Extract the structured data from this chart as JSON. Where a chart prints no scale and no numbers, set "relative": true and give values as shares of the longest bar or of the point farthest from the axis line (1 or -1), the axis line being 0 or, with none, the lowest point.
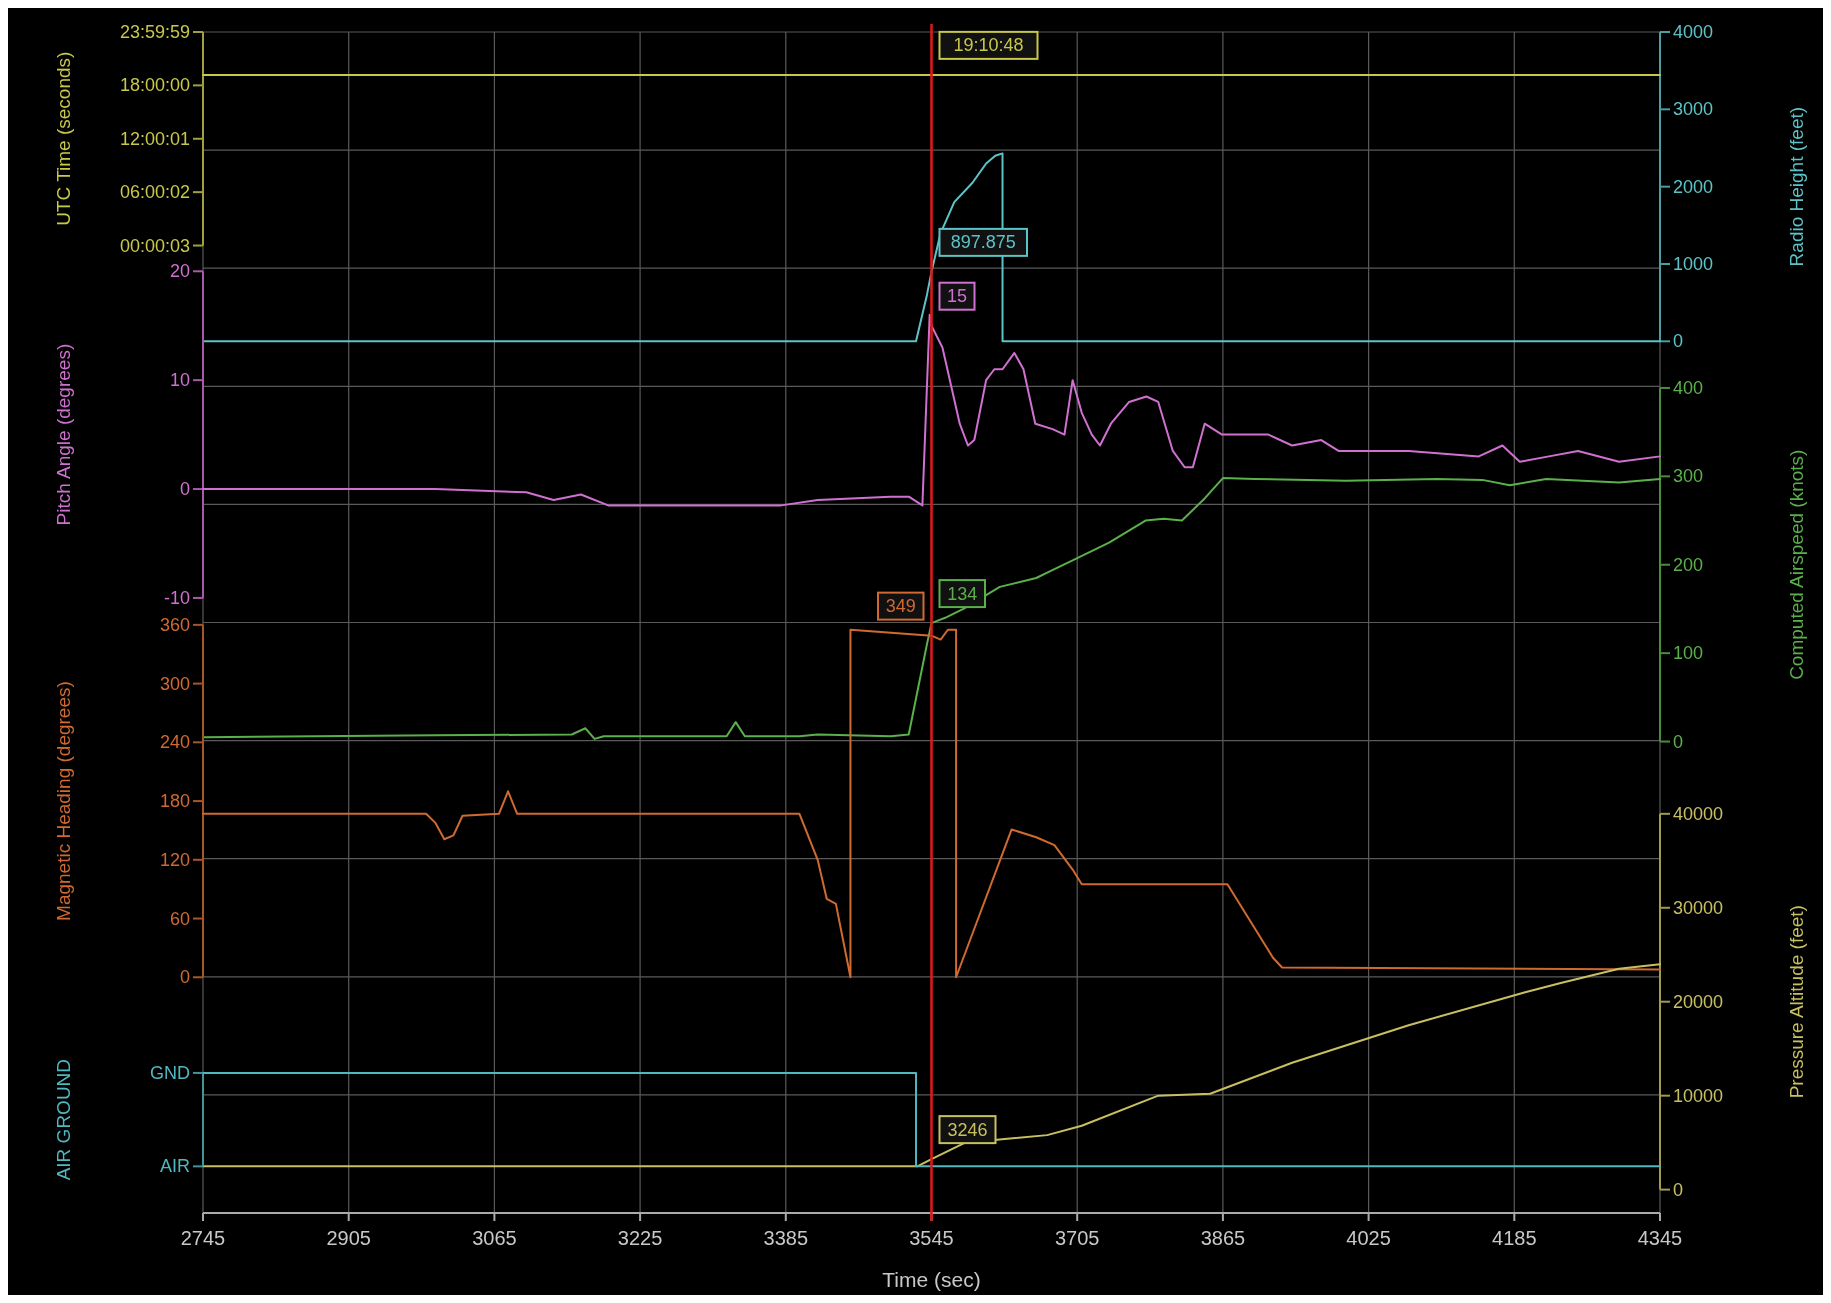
{
  "chart_data": [
    {
      "type": "line",
      "xlim": [
        2745,
        4345
      ],
      "xticks": [
        2745,
        2905,
        3065,
        3225,
        3385,
        3545,
        3705,
        3865,
        4025,
        4185,
        4345
      ],
      "tick_labels": "y",
      "grid": true,
      "ylabel": "UTC Time (seconds)",
      "ylim": [
        0.000833,
        23.999722
      ],
      "yticks": [
        {
          "value": 0.000833,
          "label": "00:00:03"
        },
        {
          "value": 6.000556,
          "label": "06:00:02"
        },
        {
          "value": 12.000278,
          "label": "12:00:01"
        },
        {
          "value": 18,
          "label": "18:00:00"
        },
        {
          "value": 23.999722,
          "label": "23:59:59"
        }
      ],
      "y2label": "Radio Height (feet)",
      "y2lim": [
        0,
        4000
      ],
      "y2ticks": [
        0,
        1000,
        2000,
        3000,
        4000
      ],
      "series": [
        {
          "color": "#c8c84a",
          "x": [
            2745,
            3545,
            4345
          ],
          "values": [
            19.18,
            19.18,
            19.18
          ],
          "value_labels": [
            null,
            "19:10:48",
            null
          ]
        },
        {
          "axis": "y2",
          "color": "#5cc4c8",
          "x": [
            2745,
            3528,
            3540,
            3545,
            3555,
            3570,
            3590,
            3605,
            3615,
            3623,
            3623,
            4345
          ],
          "values": [
            0,
            0,
            600,
            897.875,
            1400,
            1800,
            2050,
            2300,
            2400,
            2430,
            0,
            0
          ],
          "value_labels": [
            null,
            null,
            null,
            "897.875",
            null,
            null,
            null,
            null,
            null,
            null,
            null,
            null
          ]
        }
      ]
    },
    {
      "type": "line",
      "xlim": [
        2745,
        4345
      ],
      "xticks": [
        2745,
        2905,
        3065,
        3225,
        3385,
        3545,
        3705,
        3865,
        4025,
        4185,
        4345
      ],
      "tick_labels": "y",
      "grid": true,
      "ylabel": "Pitch Angle (degrees)",
      "ylim": [
        -10,
        20
      ],
      "yticks": [
        -10,
        0,
        10,
        20
      ],
      "y2label": "Computed Airspeed (knots)",
      "y2lim": [
        0,
        400
      ],
      "y2ticks": [
        0,
        100,
        200,
        300,
        400
      ],
      "series": [
        {
          "color": "#d070d0",
          "x": [
            2745,
            3000,
            3100,
            3130,
            3160,
            3190,
            3380,
            3420,
            3500,
            3520,
            3535,
            3543,
            3545,
            3557,
            3576,
            3585,
            3592,
            3605,
            3614,
            3623,
            3636,
            3646,
            3659,
            3678,
            3691,
            3700,
            3710,
            3721,
            3730,
            3742,
            3762,
            3781,
            3794,
            3810,
            3823,
            3832,
            3845,
            3864,
            3915,
            3941,
            3973,
            3992,
            4069,
            4146,
            4172,
            4191,
            4223,
            4255,
            4300,
            4345
          ],
          "values": [
            0,
            0,
            -0.3,
            -1,
            -0.5,
            -1.5,
            -1.5,
            -1,
            -0.7,
            -0.7,
            -1.5,
            16,
            15,
            13,
            6,
            4,
            4.5,
            10,
            11,
            11,
            12.5,
            11,
            6,
            5.5,
            5,
            10,
            7,
            5,
            4,
            6,
            8,
            8.5,
            8,
            3.5,
            2,
            2,
            6,
            5,
            5,
            4,
            4.5,
            3.5,
            3.5,
            3,
            4,
            2.5,
            3,
            3.5,
            2.5,
            3
          ],
          "value_labels": [
            null,
            null,
            null,
            null,
            null,
            null,
            null,
            null,
            null,
            null,
            null,
            null,
            "15",
            null,
            null,
            null,
            null,
            null,
            null,
            null,
            null,
            null,
            null,
            null,
            null,
            null,
            null,
            null,
            null,
            null,
            null,
            null,
            null,
            null,
            null,
            null,
            null,
            null,
            null,
            null,
            null,
            null,
            null,
            null,
            null,
            null,
            null,
            null,
            null,
            null
          ]
        },
        {
          "axis": "y2",
          "color": "#5ab04a",
          "x": [
            2745,
            3000,
            3150,
            3165,
            3175,
            3185,
            3320,
            3330,
            3340,
            3400,
            3420,
            3500,
            3520,
            3540,
            3545,
            3560,
            3580,
            3620,
            3660,
            3680,
            3700,
            3740,
            3780,
            3800,
            3820,
            3845,
            3865,
            3900,
            4000,
            4100,
            4150,
            4180,
            4220,
            4300,
            4345
          ],
          "values": [
            5,
            7,
            8,
            15,
            3,
            6,
            6,
            22,
            6,
            6,
            8,
            6,
            8,
            110,
            134,
            140,
            150,
            175,
            185,
            195,
            205,
            225,
            250,
            252,
            250,
            275,
            298,
            297,
            295,
            297,
            296,
            290,
            297,
            293,
            297
          ],
          "value_labels": [
            null,
            null,
            null,
            null,
            null,
            null,
            null,
            null,
            null,
            null,
            null,
            null,
            null,
            null,
            "134",
            null,
            null,
            null,
            null,
            null,
            null,
            null,
            null,
            null,
            null,
            null,
            null,
            null,
            null,
            null,
            null,
            null,
            null,
            null,
            null
          ]
        }
      ]
    },
    {
      "type": "line",
      "xlim": [
        2745,
        4345
      ],
      "xticks": [
        2745,
        2905,
        3065,
        3225,
        3385,
        3545,
        3705,
        3865,
        4025,
        4185,
        4345
      ],
      "tick_labels": "y",
      "grid": true,
      "ylabel": "Magnetic Heading (degrees)",
      "ylim": [
        0,
        360
      ],
      "yticks": [
        0,
        60,
        120,
        180,
        240,
        300,
        360
      ],
      "y2label": "Pressure Altitude (feet)",
      "y2lim": [
        0,
        40000
      ],
      "y2ticks": [
        0,
        10000,
        20000,
        30000,
        40000
      ],
      "series": [
        {
          "color": "#d06a30",
          "x": [
            2745,
            2990,
            3000,
            3010,
            3020,
            3030,
            3070,
            3080,
            3090,
            3400,
            3420,
            3430,
            3440,
            3456,
            3456,
            3545,
            3555,
            3563,
            3572,
            3572,
            3633,
            3660,
            3680,
            3700,
            3710,
            3870,
            3920,
            3930,
            4345
          ],
          "values": [
            167,
            167,
            158,
            141,
            145,
            165,
            167,
            190,
            167,
            167,
            120,
            80,
            75,
            0,
            355,
            349,
            345,
            355,
            355,
            0,
            151,
            143,
            135,
            110,
            95,
            95,
            20,
            10,
            8
          ],
          "value_labels": [
            null,
            null,
            null,
            null,
            null,
            null,
            null,
            null,
            null,
            null,
            null,
            null,
            null,
            null,
            null,
            "349",
            null,
            null,
            null,
            null,
            null,
            null,
            null,
            null,
            null,
            null,
            null,
            null,
            null
          ]
        },
        {
          "axis": "y2",
          "color": "#c8c060",
          "x": [
            2745,
            3530,
            3545,
            3582,
            3672,
            3710,
            3794,
            3851,
            3941,
            4069,
            4197,
            4236,
            4300,
            4345
          ],
          "values": [
            2500,
            2500,
            3246,
            5000,
            5800,
            6800,
            10000,
            10200,
            13500,
            17500,
            21000,
            22000,
            23500,
            24000
          ],
          "value_labels": [
            null,
            null,
            "3246",
            null,
            null,
            null,
            null,
            null,
            null,
            null,
            null,
            null,
            null,
            null
          ]
        }
      ]
    },
    {
      "type": "line",
      "xlabel": "Time (sec)",
      "xlim": [
        2745,
        4345
      ],
      "xticks": [
        2745,
        2905,
        3065,
        3225,
        3385,
        3545,
        3705,
        3865,
        4025,
        4185,
        4345
      ],
      "grid": true,
      "ylabel": "AIR GROUND",
      "relative": true,
      "annotations": [
        "GND",
        "AIR"
      ],
      "ref_lines": [
        {
          "axis": "x",
          "value": 3545,
          "color": "#e01818"
        }
      ],
      "series": [
        {
          "color": "#50b8c0",
          "x": [
            2745,
            3528,
            3528,
            4345
          ],
          "values": [
            1,
            1,
            0,
            0
          ]
        }
      ]
    }
  ]
}
